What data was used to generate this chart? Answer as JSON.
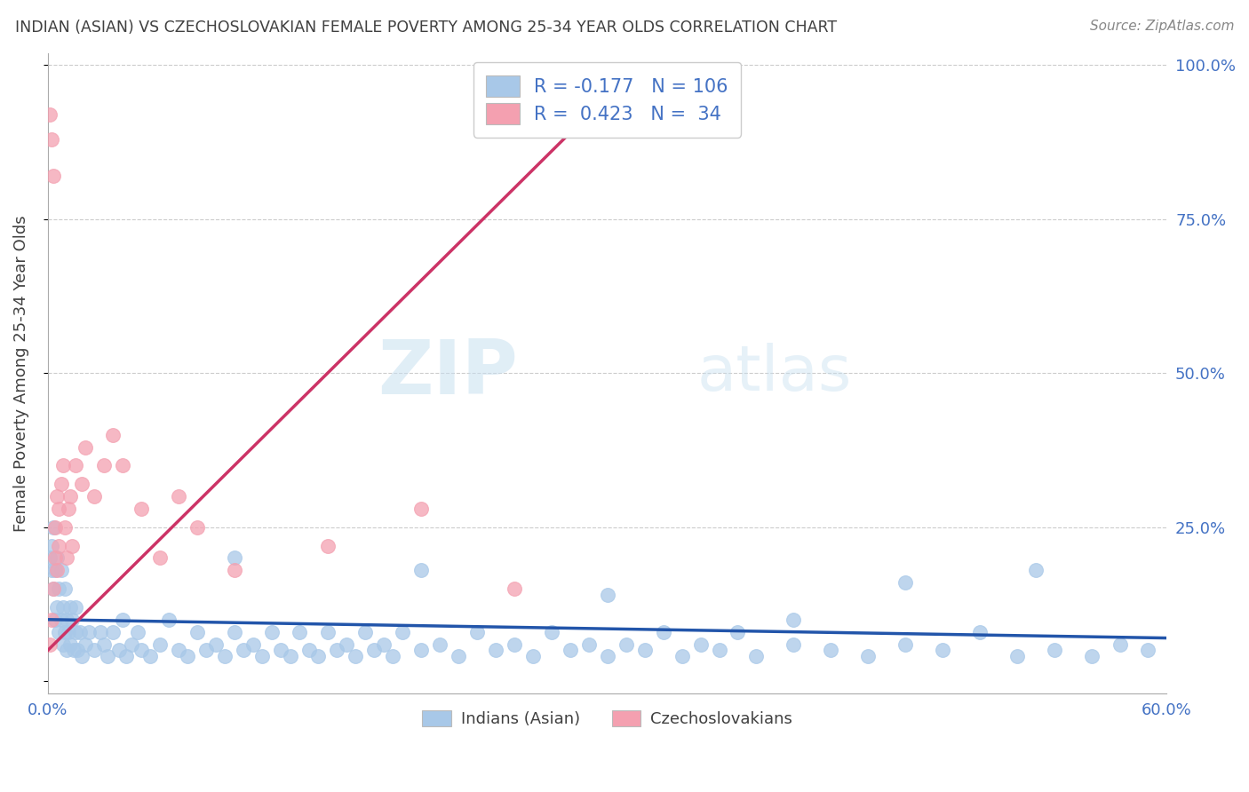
{
  "title": "INDIAN (ASIAN) VS CZECHOSLOVAKIAN FEMALE POVERTY AMONG 25-34 YEAR OLDS CORRELATION CHART",
  "source": "Source: ZipAtlas.com",
  "ylabel": "Female Poverty Among 25-34 Year Olds",
  "xlim": [
    0.0,
    0.6
  ],
  "ylim": [
    -0.02,
    1.02
  ],
  "indian_R": -0.177,
  "indian_N": 106,
  "czech_R": 0.423,
  "czech_N": 34,
  "indian_color": "#a8c8e8",
  "czech_color": "#f4a0b0",
  "indian_line_color": "#2255aa",
  "czech_line_color": "#cc3366",
  "title_color": "#404040",
  "tick_color": "#4472c4",
  "legend_text_color": "#4472c4",
  "background_color": "#ffffff",
  "grid_color": "#cccccc",
  "indian_x": [
    0.001,
    0.002,
    0.002,
    0.003,
    0.003,
    0.004,
    0.004,
    0.005,
    0.005,
    0.006,
    0.006,
    0.007,
    0.007,
    0.008,
    0.008,
    0.009,
    0.009,
    0.01,
    0.01,
    0.011,
    0.012,
    0.012,
    0.013,
    0.014,
    0.015,
    0.015,
    0.016,
    0.017,
    0.018,
    0.02,
    0.022,
    0.025,
    0.028,
    0.03,
    0.032,
    0.035,
    0.038,
    0.04,
    0.042,
    0.045,
    0.048,
    0.05,
    0.055,
    0.06,
    0.065,
    0.07,
    0.075,
    0.08,
    0.085,
    0.09,
    0.095,
    0.1,
    0.105,
    0.11,
    0.115,
    0.12,
    0.125,
    0.13,
    0.135,
    0.14,
    0.145,
    0.15,
    0.155,
    0.16,
    0.165,
    0.17,
    0.175,
    0.18,
    0.185,
    0.19,
    0.2,
    0.21,
    0.22,
    0.23,
    0.24,
    0.25,
    0.26,
    0.27,
    0.28,
    0.29,
    0.3,
    0.31,
    0.32,
    0.33,
    0.34,
    0.35,
    0.36,
    0.37,
    0.38,
    0.4,
    0.42,
    0.44,
    0.46,
    0.48,
    0.5,
    0.52,
    0.54,
    0.56,
    0.575,
    0.59,
    0.1,
    0.2,
    0.3,
    0.4,
    0.46,
    0.53
  ],
  "indian_y": [
    0.2,
    0.22,
    0.18,
    0.15,
    0.25,
    0.1,
    0.18,
    0.12,
    0.2,
    0.08,
    0.15,
    0.1,
    0.18,
    0.06,
    0.12,
    0.08,
    0.15,
    0.1,
    0.05,
    0.08,
    0.12,
    0.06,
    0.1,
    0.05,
    0.08,
    0.12,
    0.05,
    0.08,
    0.04,
    0.06,
    0.08,
    0.05,
    0.08,
    0.06,
    0.04,
    0.08,
    0.05,
    0.1,
    0.04,
    0.06,
    0.08,
    0.05,
    0.04,
    0.06,
    0.1,
    0.05,
    0.04,
    0.08,
    0.05,
    0.06,
    0.04,
    0.08,
    0.05,
    0.06,
    0.04,
    0.08,
    0.05,
    0.04,
    0.08,
    0.05,
    0.04,
    0.08,
    0.05,
    0.06,
    0.04,
    0.08,
    0.05,
    0.06,
    0.04,
    0.08,
    0.05,
    0.06,
    0.04,
    0.08,
    0.05,
    0.06,
    0.04,
    0.08,
    0.05,
    0.06,
    0.04,
    0.06,
    0.05,
    0.08,
    0.04,
    0.06,
    0.05,
    0.08,
    0.04,
    0.06,
    0.05,
    0.04,
    0.06,
    0.05,
    0.08,
    0.04,
    0.05,
    0.04,
    0.06,
    0.05,
    0.2,
    0.18,
    0.14,
    0.1,
    0.16,
    0.18
  ],
  "czech_x": [
    0.001,
    0.001,
    0.002,
    0.002,
    0.003,
    0.003,
    0.004,
    0.004,
    0.005,
    0.005,
    0.006,
    0.006,
    0.007,
    0.008,
    0.009,
    0.01,
    0.011,
    0.012,
    0.013,
    0.015,
    0.018,
    0.02,
    0.025,
    0.03,
    0.035,
    0.04,
    0.05,
    0.06,
    0.07,
    0.08,
    0.1,
    0.15,
    0.2,
    0.25
  ],
  "czech_y": [
    0.06,
    0.92,
    0.1,
    0.88,
    0.15,
    0.82,
    0.2,
    0.25,
    0.3,
    0.18,
    0.22,
    0.28,
    0.32,
    0.35,
    0.25,
    0.2,
    0.28,
    0.3,
    0.22,
    0.35,
    0.32,
    0.38,
    0.3,
    0.35,
    0.4,
    0.35,
    0.28,
    0.2,
    0.3,
    0.25,
    0.18,
    0.22,
    0.28,
    0.15
  ],
  "czech_line_x0": 0.0,
  "czech_line_y0": 0.05,
  "czech_line_slope": 3.0,
  "indian_line_x0": 0.0,
  "indian_line_y0": 0.1,
  "indian_line_slope": -0.05
}
